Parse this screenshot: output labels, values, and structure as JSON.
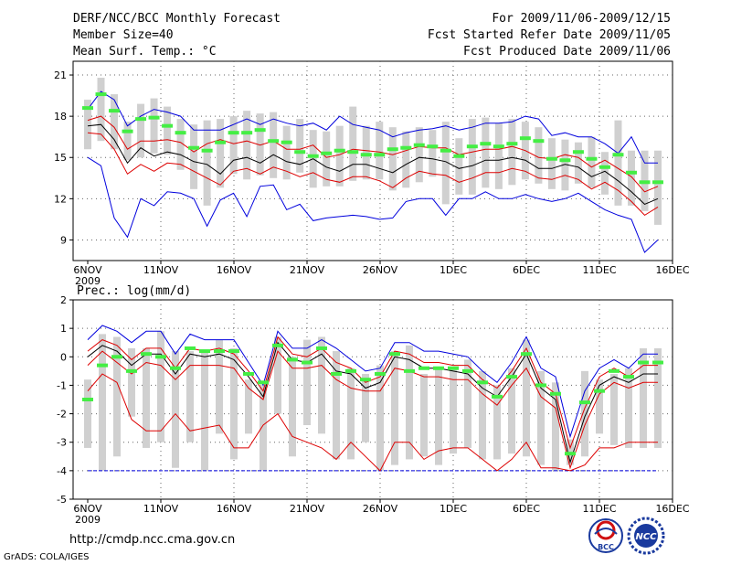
{
  "header": {
    "title": "DERF/NCC/BCC Monthly Forecast",
    "member_size": "Member Size=40",
    "variable": "Mean Surf. Temp.: °C",
    "fcst_period": "For 2009/11/06-2009/12/15",
    "fcst_started": "Fcst Started Refer Date 2009/11/05",
    "fcst_produced": "Fcst Produced Date 2009/11/06"
  },
  "footer": {
    "url": "http://cmdp.ncc.cma.gov.cn",
    "grads": "GrADS: COLA/IGES",
    "logo_bcc": "BCC",
    "logo_ncc": "NCC"
  },
  "colors": {
    "blue": "#0000dd",
    "red": "#dd0000",
    "black": "#000000",
    "green": "#44ee44",
    "gray": "#d0d0d0"
  },
  "chart_data": [
    {
      "type": "line",
      "title": "Mean Surf. Temp.: °C",
      "x_tick_labels": [
        "6NOV",
        "11NOV",
        "16NOV",
        "21NOV",
        "26NOV",
        "1DEC",
        "6DEC",
        "11DEC",
        "16DEC"
      ],
      "x_year_label": "2009",
      "ylim": [
        7.5,
        22
      ],
      "yticks": [
        9,
        12,
        15,
        18,
        21
      ],
      "grid": true,
      "series": [
        {
          "name": "max",
          "color": "blue",
          "values": [
            18.5,
            19.8,
            19.2,
            17.3,
            18.0,
            18.5,
            18.3,
            18.0,
            17.0,
            17.0,
            17.0,
            17.4,
            17.8,
            17.4,
            17.8,
            17.5,
            17.3,
            17.5,
            17.0,
            18.0,
            17.4,
            17.2,
            17.0,
            16.5,
            16.8,
            17.0,
            17.1,
            17.3,
            17.0,
            17.2,
            17.5,
            17.5,
            17.6,
            18.0,
            17.8,
            16.6,
            16.8,
            16.5,
            16.5,
            16.0,
            15.3,
            16.5,
            14.6,
            14.6
          ]
        },
        {
          "name": "max_likely",
          "color": "red",
          "values": [
            17.7,
            18.0,
            17.2,
            15.6,
            16.2,
            16.2,
            16.3,
            16.1,
            15.4,
            16.0,
            16.3,
            16.0,
            16.2,
            15.9,
            16.2,
            15.6,
            15.6,
            15.9,
            15.0,
            15.2,
            15.6,
            15.5,
            15.4,
            15.2,
            15.5,
            15.8,
            15.7,
            15.7,
            15.2,
            15.4,
            15.6,
            15.6,
            15.8,
            15.5,
            15.0,
            14.9,
            15.2,
            15.0,
            14.3,
            14.8,
            14.2,
            13.6,
            12.5,
            12.9
          ]
        },
        {
          "name": "mean",
          "color": "black",
          "values": [
            17.3,
            17.4,
            16.3,
            14.6,
            15.7,
            15.1,
            15.4,
            15.2,
            14.7,
            14.5,
            13.8,
            14.8,
            15.0,
            14.6,
            15.2,
            14.7,
            14.5,
            14.9,
            14.3,
            14.0,
            14.5,
            14.5,
            14.2,
            13.9,
            14.5,
            15.0,
            14.9,
            14.7,
            14.2,
            14.4,
            14.8,
            14.8,
            15.0,
            14.8,
            14.2,
            14.2,
            14.5,
            14.3,
            13.6,
            14.0,
            13.3,
            12.5,
            11.6,
            12.0
          ]
        },
        {
          "name": "min_likely",
          "color": "red",
          "values": [
            16.8,
            16.7,
            15.6,
            13.8,
            14.5,
            14.0,
            14.6,
            14.5,
            14.0,
            13.5,
            13.0,
            14.0,
            14.2,
            13.8,
            14.3,
            14.0,
            13.6,
            13.9,
            13.4,
            13.2,
            13.6,
            13.6,
            13.3,
            12.8,
            13.5,
            14.0,
            13.8,
            13.7,
            13.2,
            13.5,
            13.9,
            13.9,
            14.2,
            14.0,
            13.5,
            13.4,
            13.7,
            13.4,
            12.7,
            13.2,
            12.6,
            11.8,
            10.8,
            11.4
          ]
        },
        {
          "name": "min",
          "color": "blue",
          "values": [
            15.0,
            14.4,
            10.6,
            9.2,
            12.0,
            11.5,
            12.5,
            12.4,
            12.0,
            10.0,
            11.9,
            12.4,
            10.7,
            12.9,
            13.0,
            11.2,
            11.6,
            10.4,
            10.6,
            10.7,
            10.8,
            10.7,
            10.5,
            10.6,
            11.8,
            12.0,
            12.0,
            10.8,
            12.0,
            12.0,
            12.5,
            12.0,
            12.0,
            12.3,
            12.0,
            11.8,
            12.0,
            12.4,
            11.8,
            11.2,
            10.8,
            10.5,
            8.1,
            9.0
          ]
        },
        {
          "name": "ensemble_median",
          "color": "green",
          "values": [
            18.6,
            19.6,
            18.4,
            16.9,
            17.8,
            17.9,
            17.3,
            16.8,
            15.7,
            15.5,
            16.1,
            16.8,
            16.8,
            17.0,
            16.2,
            16.1,
            15.4,
            15.1,
            15.3,
            15.5,
            15.4,
            15.2,
            15.2,
            15.6,
            15.7,
            15.9,
            15.8,
            15.5,
            15.1,
            15.8,
            16.0,
            15.8,
            16.0,
            16.4,
            16.2,
            14.9,
            14.8,
            15.4,
            14.9,
            14.3,
            15.2,
            13.9,
            13.2,
            13.2
          ]
        },
        {
          "name": "bar_high",
          "color": "gray",
          "values": [
            19.2,
            20.8,
            19.6,
            17.6,
            18.9,
            19.3,
            18.7,
            17.8,
            17.4,
            17.7,
            17.8,
            18.0,
            18.4,
            18.2,
            18.3,
            17.3,
            17.8,
            17.0,
            16.9,
            17.3,
            18.7,
            17.3,
            17.6,
            17.2,
            16.9,
            17.2,
            17.0,
            17.6,
            16.4,
            17.8,
            17.9,
            17.5,
            17.8,
            17.6,
            17.2,
            16.4,
            16.3,
            16.1,
            16.5,
            15.4,
            17.7,
            15.5,
            15.5,
            15.5
          ]
        },
        {
          "name": "bar_low",
          "color": "gray",
          "values": [
            15.6,
            16.2,
            15.6,
            14.8,
            15.0,
            15.3,
            15.2,
            14.1,
            12.7,
            11.5,
            12.8,
            13.8,
            13.4,
            13.7,
            13.5,
            13.4,
            13.9,
            12.8,
            12.9,
            12.9,
            13.3,
            13.4,
            13.4,
            12.6,
            12.8,
            13.2,
            13.6,
            11.6,
            12.3,
            12.3,
            12.8,
            12.7,
            13.0,
            13.4,
            13.1,
            12.7,
            12.6,
            13.1,
            12.8,
            12.3,
            11.5,
            11.5,
            11.1,
            10.1
          ]
        }
      ]
    },
    {
      "type": "line",
      "title": "Prec.: log(mm/d)",
      "x_tick_labels": [
        "6NOV",
        "11NOV",
        "16NOV",
        "21NOV",
        "26NOV",
        "1DEC",
        "6DEC",
        "11DEC",
        "16DEC"
      ],
      "x_year_label": "2009",
      "ylim": [
        -5,
        2
      ],
      "yticks": [
        -5,
        -4,
        -3,
        -2,
        -1,
        0,
        1,
        2
      ],
      "grid": true,
      "series": [
        {
          "name": "max",
          "color": "blue",
          "values": [
            0.6,
            1.1,
            0.9,
            0.5,
            0.9,
            0.9,
            0.1,
            0.8,
            0.6,
            0.6,
            0.6,
            -0.2,
            -1.0,
            0.9,
            0.3,
            0.3,
            0.6,
            0.3,
            -0.1,
            -0.5,
            -0.4,
            0.5,
            0.5,
            0.2,
            0.2,
            0.1,
            0.0,
            -0.5,
            -0.9,
            -0.2,
            0.7,
            -0.4,
            -0.7,
            -2.8,
            -1.2,
            -0.4,
            -0.1,
            -0.4,
            0.1,
            0.1
          ]
        },
        {
          "name": "max_likely",
          "color": "red",
          "values": [
            0.2,
            0.6,
            0.4,
            -0.1,
            0.3,
            0.3,
            -0.4,
            0.3,
            0.2,
            0.3,
            0.1,
            -0.5,
            -1.2,
            0.7,
            0.1,
            0.0,
            0.3,
            -0.2,
            -0.4,
            -0.9,
            -0.7,
            0.2,
            0.1,
            -0.2,
            -0.2,
            -0.3,
            -0.3,
            -0.8,
            -1.1,
            -0.5,
            0.3,
            -0.9,
            -1.3,
            -3.2,
            -1.8,
            -0.7,
            -0.4,
            -0.7,
            -0.3,
            -0.3
          ]
        },
        {
          "name": "mean",
          "color": "black",
          "values": [
            0.0,
            0.4,
            0.2,
            -0.3,
            0.1,
            0.1,
            -0.6,
            0.1,
            0.0,
            0.1,
            -0.1,
            -0.7,
            -1.4,
            0.5,
            -0.1,
            -0.2,
            0.1,
            -0.5,
            -0.6,
            -1.1,
            -0.9,
            0.0,
            -0.1,
            -0.4,
            -0.4,
            -0.5,
            -0.6,
            -1.1,
            -1.4,
            -0.7,
            0.1,
            -1.1,
            -1.5,
            -3.7,
            -2.1,
            -1.0,
            -0.7,
            -0.9,
            -0.6,
            -0.6
          ]
        },
        {
          "name": "min_likely",
          "color": "red",
          "values": [
            -0.3,
            0.2,
            -0.2,
            -0.6,
            -0.2,
            -0.3,
            -0.8,
            -0.3,
            -0.3,
            -0.3,
            -0.4,
            -1.1,
            -1.5,
            0.2,
            -0.4,
            -0.4,
            -0.3,
            -0.8,
            -1.1,
            -1.2,
            -1.2,
            -0.4,
            -0.5,
            -0.7,
            -0.7,
            -0.8,
            -0.8,
            -1.3,
            -1.7,
            -1.0,
            -0.4,
            -1.4,
            -1.8,
            -3.9,
            -2.4,
            -1.3,
            -0.9,
            -1.1,
            -0.9,
            -0.9
          ]
        },
        {
          "name": "min",
          "color": "red",
          "values": [
            -1.2,
            -0.6,
            -0.9,
            -2.2,
            -2.6,
            -2.6,
            -2.0,
            -2.6,
            -2.5,
            -2.4,
            -3.2,
            -3.2,
            -2.4,
            -2.0,
            -2.8,
            -3.0,
            -3.2,
            -3.6,
            -3.0,
            -3.5,
            -4.0,
            -3.0,
            -3.0,
            -3.6,
            -3.3,
            -3.2,
            -3.2,
            -3.6,
            -4.0,
            -3.6,
            -3.0,
            -3.9,
            -3.9,
            -4.0,
            -3.8,
            -3.2,
            -3.2,
            -3.0,
            -3.0,
            -3.0
          ]
        },
        {
          "name": "ensemble_median",
          "color": "green",
          "values": [
            -1.5,
            -0.3,
            0.0,
            -0.5,
            0.1,
            0.0,
            -0.4,
            0.3,
            0.2,
            0.2,
            0.2,
            -0.6,
            -0.9,
            0.4,
            -0.1,
            -0.2,
            0.3,
            -0.6,
            -0.5,
            -0.8,
            -0.6,
            0.1,
            -0.5,
            -0.4,
            -0.4,
            -0.4,
            -0.5,
            -0.9,
            -1.4,
            -0.7,
            0.1,
            -1.0,
            -1.3,
            -3.4,
            -1.6,
            -1.2,
            -0.5,
            -0.7,
            -0.2,
            -0.2
          ]
        },
        {
          "name": "bar_high",
          "color": "gray",
          "values": [
            -0.8,
            0.8,
            0.7,
            0.3,
            0.3,
            0.9,
            0.2,
            0.2,
            0.2,
            0.6,
            0.3,
            -0.8,
            -1.0,
            0.7,
            0.0,
            0.6,
            0.7,
            0.2,
            -0.4,
            -0.6,
            -0.3,
            0.2,
            0.4,
            -0.6,
            -0.4,
            -0.4,
            -0.1,
            -0.5,
            -1.0,
            -0.4,
            0.6,
            -0.5,
            -0.9,
            -2.9,
            -0.5,
            -0.8,
            -0.6,
            -0.4,
            0.3,
            0.3
          ]
        },
        {
          "name": "bar_low",
          "color": "gray",
          "values": [
            -3.2,
            -4.0,
            -3.5,
            -2.1,
            -3.2,
            -3.0,
            -3.9,
            -3.0,
            -4.0,
            -2.7,
            -3.6,
            -2.7,
            -4.0,
            -2.0,
            -3.5,
            -2.4,
            -2.7,
            -3.6,
            -3.6,
            -3.0,
            -4.0,
            -3.8,
            -3.6,
            -3.5,
            -3.8,
            -3.4,
            -3.2,
            -3.6,
            -3.6,
            -3.4,
            -3.5,
            -3.8,
            -4.0,
            -3.8,
            -3.5,
            -2.7,
            -3.1,
            -3.2,
            -3.2,
            -3.2
          ]
        }
      ]
    }
  ]
}
